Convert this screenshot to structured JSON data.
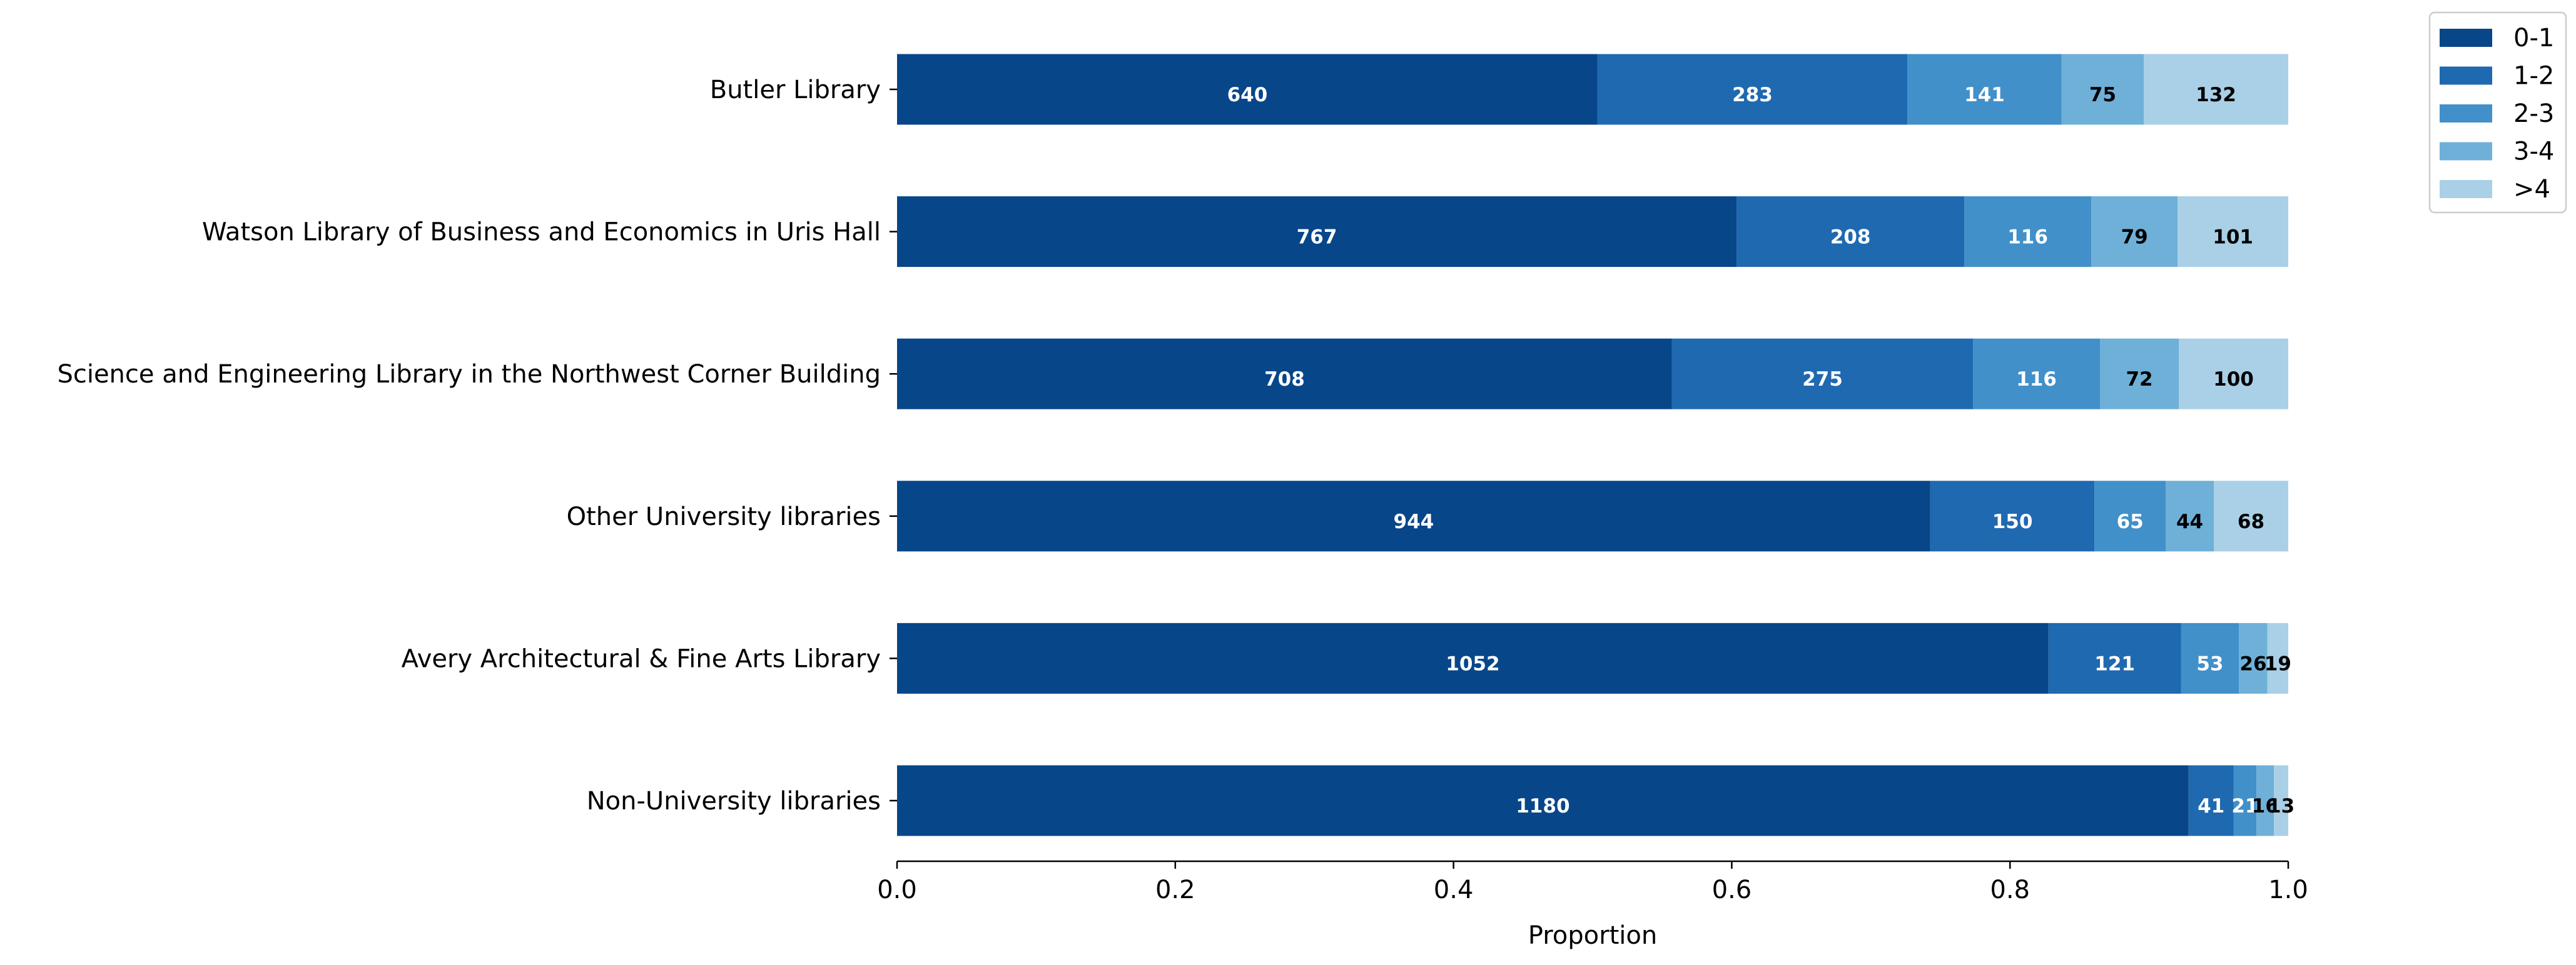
{
  "chart_data": {
    "type": "bar",
    "orientation": "horizontal",
    "stacked": true,
    "normalized": true,
    "title": "",
    "xlabel": "Proportion",
    "ylabel": "",
    "xlim": [
      0,
      1
    ],
    "xticks": [
      "0.0",
      "0.2",
      "0.4",
      "0.6",
      "0.8",
      "1.0"
    ],
    "grid": false,
    "legend_position": "top-right, outside plot",
    "categories": [
      "Butler Library",
      "Watson Library of Business and Economics in Uris Hall",
      "Science and Engineering Library in the Northwest Corner Building",
      "Other University libraries",
      "Avery Architectural & Fine Arts Library",
      "Non-University libraries"
    ],
    "series": [
      {
        "name": "0-1",
        "color": "#08468a",
        "label_color": "#ffffff",
        "values": [
          640,
          767,
          708,
          944,
          1052,
          1180
        ]
      },
      {
        "name": "1-2",
        "color": "#1f69b0",
        "label_color": "#ffffff",
        "values": [
          283,
          208,
          275,
          150,
          121,
          41
        ]
      },
      {
        "name": "2-3",
        "color": "#4190c9",
        "label_color": "#ffffff",
        "values": [
          141,
          116,
          116,
          65,
          53,
          21
        ]
      },
      {
        "name": "3-4",
        "color": "#6fb0d8",
        "label_color": "#000000",
        "values": [
          75,
          79,
          72,
          44,
          26,
          16
        ]
      },
      {
        "name": ">4",
        "color": "#a9d0e6",
        "label_color": "#000000",
        "values": [
          132,
          101,
          100,
          68,
          19,
          13
        ]
      }
    ]
  }
}
